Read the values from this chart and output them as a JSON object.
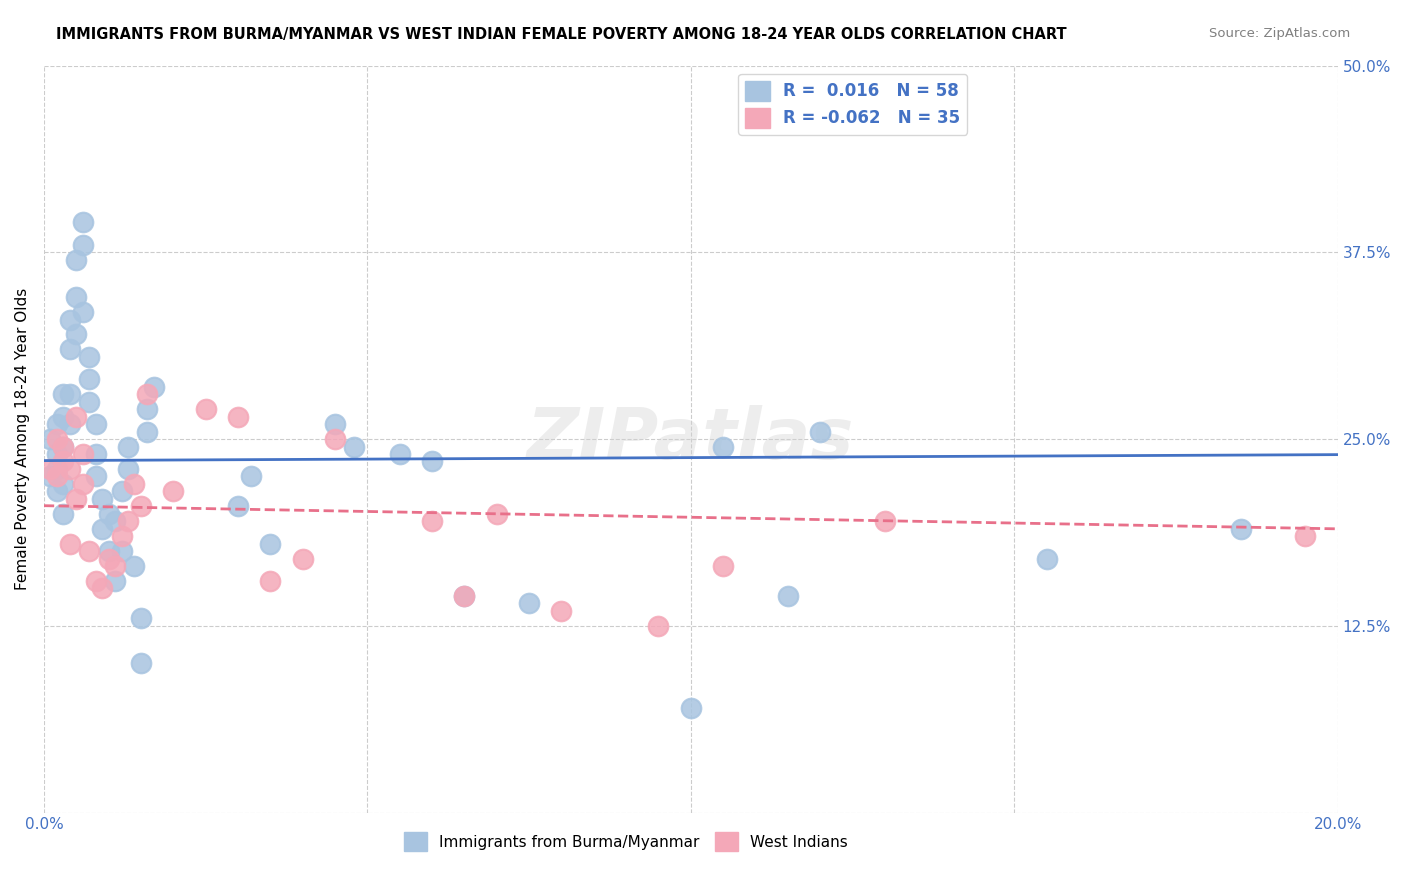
{
  "title": "IMMIGRANTS FROM BURMA/MYANMAR VS WEST INDIAN FEMALE POVERTY AMONG 18-24 YEAR OLDS CORRELATION CHART",
  "source": "Source: ZipAtlas.com",
  "ylabel": "Female Poverty Among 18-24 Year Olds",
  "xlabel": "",
  "xlim": [
    0.0,
    0.2
  ],
  "ylim": [
    0.0,
    0.5
  ],
  "xticks": [
    0.0,
    0.05,
    0.1,
    0.15,
    0.2
  ],
  "xticklabels": [
    "0.0%",
    "",
    "",
    "",
    "20.0%"
  ],
  "yticks": [
    0.0,
    0.125,
    0.25,
    0.375,
    0.5
  ],
  "yticklabels": [
    "",
    "12.5%",
    "25.0%",
    "37.5%",
    "50.0%"
  ],
  "blue_R": 0.016,
  "blue_N": 58,
  "pink_R": -0.062,
  "pink_N": 35,
  "blue_color": "#a8c4e0",
  "pink_color": "#f4a8b8",
  "blue_line_color": "#4472c4",
  "pink_line_color": "#e8708a",
  "legend_text_color": "#4472c4",
  "watermark": "ZIPatlas",
  "blue_scatter_x": [
    0.001,
    0.001,
    0.002,
    0.002,
    0.002,
    0.002,
    0.003,
    0.003,
    0.003,
    0.003,
    0.003,
    0.004,
    0.004,
    0.004,
    0.004,
    0.005,
    0.005,
    0.005,
    0.006,
    0.006,
    0.006,
    0.007,
    0.007,
    0.007,
    0.008,
    0.008,
    0.008,
    0.009,
    0.009,
    0.01,
    0.01,
    0.011,
    0.011,
    0.012,
    0.012,
    0.013,
    0.013,
    0.014,
    0.015,
    0.015,
    0.016,
    0.016,
    0.017,
    0.03,
    0.032,
    0.035,
    0.045,
    0.048,
    0.055,
    0.06,
    0.065,
    0.075,
    0.1,
    0.105,
    0.115,
    0.12,
    0.155,
    0.185
  ],
  "blue_scatter_y": [
    0.25,
    0.225,
    0.26,
    0.24,
    0.215,
    0.23,
    0.245,
    0.22,
    0.265,
    0.28,
    0.2,
    0.33,
    0.31,
    0.28,
    0.26,
    0.37,
    0.345,
    0.32,
    0.395,
    0.38,
    0.335,
    0.305,
    0.29,
    0.275,
    0.26,
    0.24,
    0.225,
    0.21,
    0.19,
    0.2,
    0.175,
    0.155,
    0.195,
    0.175,
    0.215,
    0.23,
    0.245,
    0.165,
    0.1,
    0.13,
    0.255,
    0.27,
    0.285,
    0.205,
    0.225,
    0.18,
    0.26,
    0.245,
    0.24,
    0.235,
    0.145,
    0.14,
    0.07,
    0.245,
    0.145,
    0.255,
    0.17,
    0.19
  ],
  "pink_scatter_x": [
    0.001,
    0.002,
    0.002,
    0.003,
    0.003,
    0.004,
    0.004,
    0.005,
    0.005,
    0.006,
    0.006,
    0.007,
    0.008,
    0.009,
    0.01,
    0.011,
    0.012,
    0.013,
    0.014,
    0.015,
    0.016,
    0.02,
    0.025,
    0.03,
    0.035,
    0.04,
    0.045,
    0.06,
    0.065,
    0.07,
    0.08,
    0.095,
    0.105,
    0.13,
    0.195
  ],
  "pink_scatter_y": [
    0.23,
    0.25,
    0.225,
    0.245,
    0.235,
    0.23,
    0.18,
    0.21,
    0.265,
    0.24,
    0.22,
    0.175,
    0.155,
    0.15,
    0.17,
    0.165,
    0.185,
    0.195,
    0.22,
    0.205,
    0.28,
    0.215,
    0.27,
    0.265,
    0.155,
    0.17,
    0.25,
    0.195,
    0.145,
    0.2,
    0.135,
    0.125,
    0.165,
    0.195,
    0.185
  ],
  "background_color": "#ffffff",
  "grid_color": "#cccccc"
}
